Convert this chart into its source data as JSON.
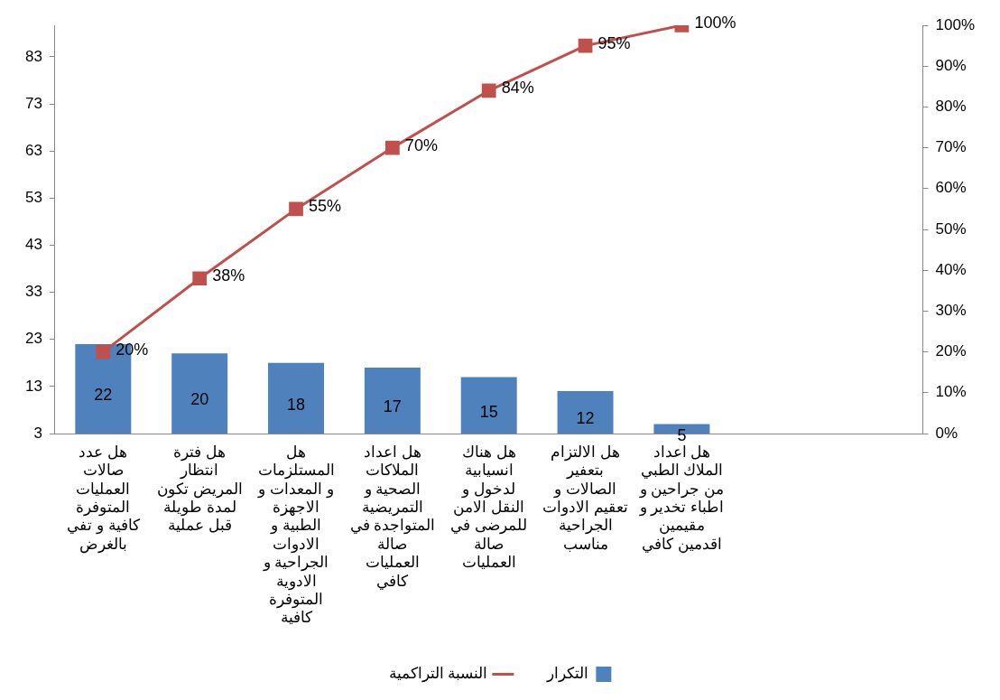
{
  "chart_data": {
    "type": "bar",
    "categories": [
      "هل عدد صالات العمليات المتوفرة كافية و تفي بالغرض",
      "هل فترة انتظار المريض تكون لمدة طويلة قبل عملية",
      "هل المستلزمات و المعدات و الاجهزة الطبية و الادوات الجراحية و الادوية المتوفرة كافية",
      "هل اعداد الملاكات الصحية و التمريضية المتواجدة في صالة العمليات كافي",
      "هل هناك انسيابية لدخول و النقل الامن للمرضى في صالة العمليات",
      "هل الالتزام بتعفير الصالات و تعقيم الادوات الجراحية مناسب",
      "هل اعداد الملاك الطبي من جراحين و اطباء تخدير و مقيمين اقدمين كافي",
      null,
      null
    ],
    "series": [
      {
        "name": "التكرار",
        "color": "#4f81bd",
        "values": [
          22,
          20,
          18,
          17,
          15,
          12,
          5,
          null,
          null
        ],
        "value_labels": [
          "22",
          "20",
          "18",
          "17",
          "15",
          "12",
          "5",
          null,
          null
        ]
      },
      {
        "name": "النسبة التراكمية",
        "type": "line",
        "axis": "y2",
        "color": "#c0504d",
        "values": [
          20,
          38,
          55,
          70,
          84,
          95,
          100,
          null,
          null
        ],
        "value_labels": [
          "20%",
          "38%",
          "55%",
          "70%",
          "84%",
          "95%",
          "100%",
          null,
          null
        ]
      }
    ],
    "ylim": [
      3,
      89.7
    ],
    "yticks": [
      3,
      13,
      23,
      33,
      43,
      53,
      63,
      73,
      83
    ],
    "y2lim": [
      0,
      100
    ],
    "y2ticks": [
      {
        "value": 0,
        "label": "0%"
      },
      {
        "value": 10,
        "label": "10%"
      },
      {
        "value": 20,
        "label": "20%"
      },
      {
        "value": 30,
        "label": "30%"
      },
      {
        "value": 40,
        "label": "40%"
      },
      {
        "value": 50,
        "label": "50%"
      },
      {
        "value": 60,
        "label": "60%"
      },
      {
        "value": 70,
        "label": "70%"
      },
      {
        "value": 80,
        "label": "80%"
      },
      {
        "value": 90,
        "label": "90%"
      },
      {
        "value": 100,
        "label": "100%"
      }
    ],
    "grid": false,
    "legend": "bottom",
    "marker": "square",
    "line_style": "solid"
  }
}
